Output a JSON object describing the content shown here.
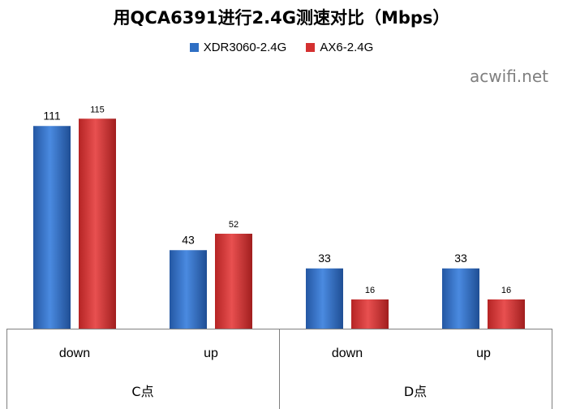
{
  "watermark": "acwifi.net",
  "colors": {
    "series1": "#2f6fc4",
    "series2": "#d43030",
    "axis": "#808080"
  },
  "chart_data": {
    "type": "bar",
    "title": "用QCA6391进行2.4G测速对比（Mbps）",
    "groups": [
      {
        "label": "C点",
        "categories": [
          "down",
          "up"
        ]
      },
      {
        "label": "D点",
        "categories": [
          "down",
          "up"
        ]
      }
    ],
    "categories": [
      "down",
      "up",
      "down",
      "up"
    ],
    "series": [
      {
        "name": "XDR3060-2.4G",
        "values": [
          111,
          43,
          33,
          33
        ]
      },
      {
        "name": "AX6-2.4G",
        "values": [
          115,
          52,
          16,
          16
        ]
      }
    ],
    "ylim": [
      0,
      120
    ],
    "grid": false,
    "legend": "top"
  }
}
